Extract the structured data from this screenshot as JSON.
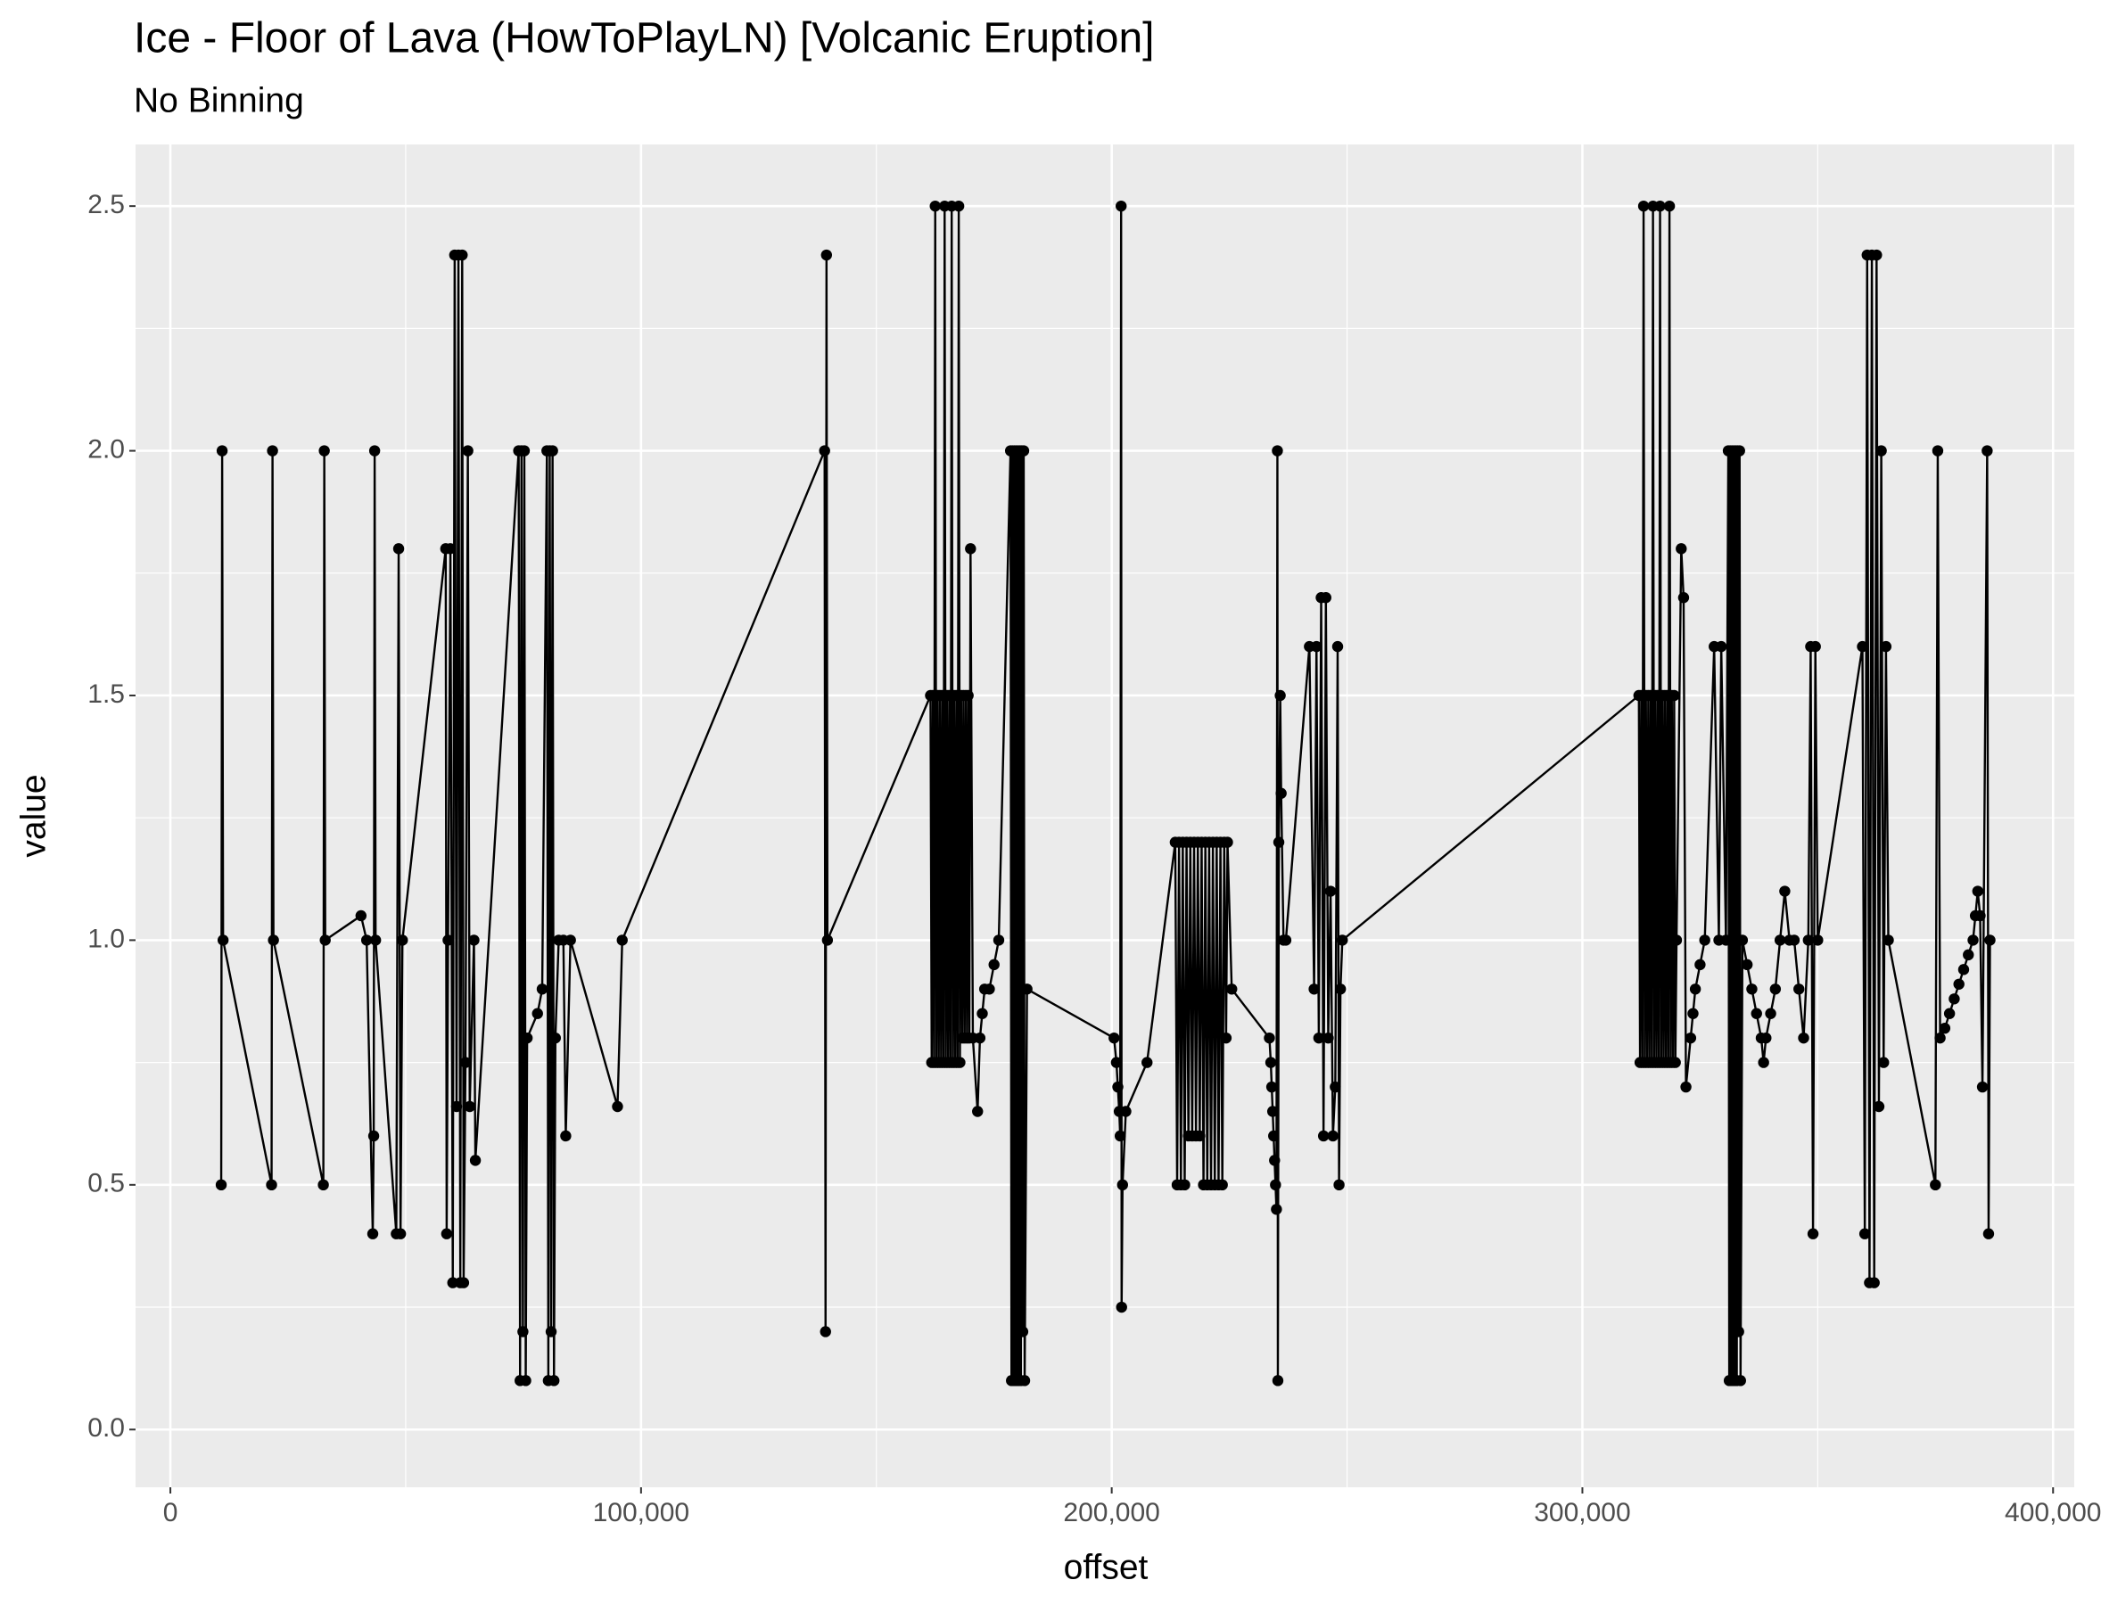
{
  "chart_data": {
    "type": "line",
    "title": "Ice - Floor of Lava (HowToPlayLN) [Volcanic Eruption]",
    "subtitle": "No Binning",
    "x_label": "offset",
    "y_label": "value",
    "color": "#000000",
    "grid": true,
    "markers": true,
    "xlim": [
      -7400,
      404500
    ],
    "ylim": [
      -0.118,
      2.626
    ],
    "xticks": [
      0,
      {
        "value": 100000,
        "label": "100,000"
      },
      {
        "value": 200000,
        "label": "200,000"
      },
      {
        "value": 300000,
        "label": "300,000"
      },
      {
        "value": 400000,
        "label": "400,000"
      }
    ],
    "yticks": [
      {
        "value": 0,
        "label": "0.0"
      },
      {
        "value": 0.5,
        "label": "0.5"
      },
      {
        "value": 1,
        "label": "1.0"
      },
      {
        "value": 1.5,
        "label": "1.5"
      },
      {
        "value": 2,
        "label": "2.0"
      },
      {
        "value": 2.5,
        "label": "2.5"
      }
    ],
    "x": [
      10800,
      11000,
      11200,
      21500,
      21700,
      21900,
      32500,
      32700,
      32900,
      40500,
      41700,
      43000,
      43200,
      43400,
      43600,
      48000,
      48500,
      48900,
      49300,
      58500,
      58700,
      59000,
      59500,
      60000,
      60400,
      60800,
      61200,
      61600,
      62000,
      62300,
      62700,
      63200,
      63600,
      64500,
      64800,
      74000,
      74300,
      74600,
      74900,
      75200,
      75500,
      75800,
      78000,
      79000,
      80000,
      80300,
      80600,
      80900,
      81200,
      81500,
      81800,
      82500,
      83500,
      84000,
      85000,
      95000,
      96000,
      139000,
      139200,
      139400,
      139600,
      161500,
      161750,
      162000,
      162250,
      162500,
      162750,
      163000,
      163250,
      163500,
      163750,
      164000,
      164250,
      164500,
      164750,
      165000,
      165250,
      165500,
      165750,
      166000,
      166250,
      166500,
      166750,
      167000,
      167250,
      167500,
      167750,
      168000,
      168250,
      168500,
      168750,
      169000,
      169250,
      169500,
      169750,
      170000,
      170500,
      171500,
      172000,
      172500,
      173000,
      174000,
      175000,
      176000,
      178500,
      178700,
      178900,
      179100,
      179300,
      179500,
      179700,
      179900,
      180100,
      180300,
      180500,
      180700,
      180900,
      181100,
      181300,
      181500,
      182000,
      200500,
      201000,
      201300,
      201600,
      201800,
      202000,
      202100,
      202300,
      203000,
      207500,
      213500,
      213900,
      214300,
      214700,
      215100,
      215500,
      215900,
      216300,
      216700,
      217100,
      217500,
      217900,
      218300,
      218700,
      219100,
      219500,
      219900,
      220300,
      220700,
      221100,
      221500,
      221900,
      222300,
      222700,
      223100,
      223500,
      223900,
      224300,
      224600,
      225500,
      233500,
      233800,
      234000,
      234200,
      234400,
      234600,
      234800,
      235000,
      235200,
      235300,
      235500,
      235800,
      236000,
      236500,
      237000,
      242000,
      243000,
      243500,
      244000,
      244500,
      245000,
      245500,
      246000,
      246500,
      247000,
      247500,
      248000,
      248300,
      248600,
      249000,
      312000,
      312250,
      312500,
      312750,
      313000,
      313250,
      313500,
      313750,
      314000,
      314250,
      314500,
      314750,
      315000,
      315250,
      315500,
      315750,
      316000,
      316250,
      316500,
      316750,
      317000,
      317250,
      317500,
      317750,
      318000,
      318250,
      318500,
      318750,
      319000,
      319250,
      319500,
      319750,
      320000,
      321000,
      321500,
      322000,
      323000,
      323500,
      324000,
      325000,
      326000,
      328000,
      329000,
      329500,
      330500,
      331000,
      331200,
      331400,
      331600,
      331800,
      332000,
      332200,
      332400,
      332600,
      332800,
      333000,
      333200,
      333400,
      333600,
      334000,
      335000,
      336000,
      337000,
      338000,
      338500,
      339000,
      340000,
      341000,
      342000,
      343000,
      344000,
      345000,
      346000,
      347000,
      348000,
      348500,
      349000,
      349500,
      350000,
      359500,
      360000,
      360500,
      361000,
      361500,
      362000,
      362500,
      363000,
      363500,
      364000,
      364500,
      365000,
      375000,
      375500,
      376000,
      377000,
      378000,
      379000,
      380000,
      381000,
      382000,
      383000,
      383500,
      384000,
      384500,
      385000,
      386000,
      386300,
      386600
    ],
    "values": [
      0.5,
      2,
      1,
      0.5,
      2,
      1,
      0.5,
      2,
      1,
      1.05,
      1,
      0.4,
      0.6,
      2,
      1,
      0.4,
      1.8,
      0.4,
      1,
      1.8,
      0.4,
      1,
      1.8,
      0.3,
      2.4,
      0.66,
      2.4,
      0.3,
      2.4,
      0.3,
      0.75,
      2,
      0.66,
      1,
      0.55,
      2,
      0.1,
      2,
      0.2,
      2,
      0.1,
      0.8,
      0.85,
      0.9,
      2,
      0.1,
      2,
      0.2,
      2,
      0.1,
      0.8,
      1,
      1,
      0.6,
      1,
      0.66,
      1,
      2,
      0.2,
      2.4,
      1,
      1.5,
      0.75,
      1.5,
      0.75,
      2.5,
      0.75,
      1.5,
      0.75,
      1.5,
      0.75,
      1.5,
      0.75,
      2.5,
      0.75,
      1.5,
      0.75,
      1.5,
      0.75,
      2.5,
      0.75,
      1.5,
      0.75,
      1.5,
      0.75,
      2.5,
      0.75,
      1.5,
      0.8,
      1.5,
      0.8,
      1.5,
      0.8,
      1.5,
      0.8,
      1.8,
      0.8,
      0.65,
      0.8,
      0.85,
      0.9,
      0.9,
      0.95,
      1,
      2,
      0.1,
      2,
      0.1,
      2,
      0.1,
      2,
      0.1,
      2,
      0.1,
      2,
      0.1,
      2,
      0.2,
      2,
      0.1,
      0.9,
      0.8,
      0.75,
      0.7,
      0.65,
      0.6,
      2.5,
      0.25,
      0.5,
      0.65,
      0.75,
      1.2,
      0.5,
      1.2,
      0.5,
      1.2,
      0.5,
      1.2,
      0.6,
      1.2,
      0.6,
      1.2,
      0.6,
      1.2,
      0.6,
      1.2,
      0.5,
      1.2,
      0.5,
      1.2,
      0.5,
      1.2,
      0.5,
      1.2,
      0.5,
      1.2,
      0.5,
      1.2,
      0.8,
      1.2,
      0.9,
      0.8,
      0.75,
      0.7,
      0.65,
      0.6,
      0.55,
      0.5,
      0.45,
      2,
      0.1,
      1.2,
      1.5,
      1.3,
      1,
      1,
      1.6,
      0.9,
      1.6,
      0.8,
      1.7,
      0.6,
      1.7,
      0.8,
      1.1,
      0.6,
      0.7,
      1.6,
      0.5,
      0.9,
      1,
      1.5,
      0.75,
      1.5,
      0.75,
      2.5,
      0.75,
      1.5,
      0.75,
      1.5,
      0.75,
      1.5,
      0.75,
      2.5,
      0.75,
      1.5,
      0.75,
      1.5,
      0.75,
      2.5,
      0.75,
      1.5,
      0.75,
      1.5,
      0.75,
      1.5,
      0.75,
      2.5,
      0.75,
      1.5,
      0.75,
      1.5,
      0.75,
      1,
      1.8,
      1.7,
      0.7,
      0.8,
      0.85,
      0.9,
      0.95,
      1,
      1.6,
      1,
      1.6,
      1,
      2,
      0.1,
      2,
      0.1,
      2,
      0.1,
      2,
      0.1,
      2,
      0.1,
      2,
      0.2,
      2,
      0.1,
      1,
      0.95,
      0.9,
      0.85,
      0.8,
      0.75,
      0.8,
      0.85,
      0.9,
      1,
      1.1,
      1,
      1,
      0.9,
      0.8,
      1,
      1.6,
      0.4,
      1.6,
      1,
      1.6,
      0.4,
      2.4,
      0.3,
      2.4,
      0.3,
      2.4,
      0.66,
      2,
      0.75,
      1.6,
      1,
      0.5,
      2,
      0.8,
      0.82,
      0.85,
      0.88,
      0.91,
      0.94,
      0.97,
      1,
      1.05,
      1.1,
      1.05,
      0.7,
      2,
      0.4,
      1
    ]
  }
}
